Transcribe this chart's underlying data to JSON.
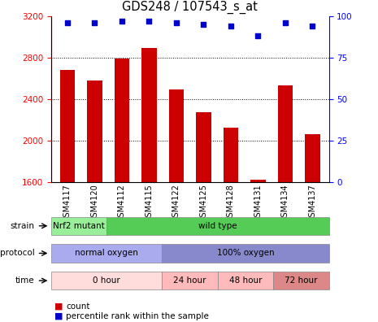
{
  "title": "GDS248 / 107543_s_at",
  "samples": [
    "GSM4117",
    "GSM4120",
    "GSM4112",
    "GSM4115",
    "GSM4122",
    "GSM4125",
    "GSM4128",
    "GSM4131",
    "GSM4134",
    "GSM4137"
  ],
  "counts": [
    2680,
    2580,
    2790,
    2890,
    2490,
    2270,
    2120,
    1620,
    2530,
    2060
  ],
  "percentiles": [
    96,
    96,
    97,
    97,
    96,
    95,
    94,
    88,
    96,
    94
  ],
  "bar_color": "#cc0000",
  "dot_color": "#0000cc",
  "ylim_left": [
    1600,
    3200
  ],
  "ylim_right": [
    0,
    100
  ],
  "yticks_left": [
    1600,
    2000,
    2400,
    2800,
    3200
  ],
  "yticks_right": [
    0,
    25,
    50,
    75,
    100
  ],
  "strain_labels": [
    {
      "text": "Nrf2 mutant",
      "start": 0,
      "end": 2,
      "color": "#99ee99"
    },
    {
      "text": "wild type",
      "start": 2,
      "end": 10,
      "color": "#55cc55"
    }
  ],
  "protocol_labels": [
    {
      "text": "normal oxygen",
      "start": 0,
      "end": 4,
      "color": "#aaaaee"
    },
    {
      "text": "100% oxygen",
      "start": 4,
      "end": 10,
      "color": "#8888cc"
    }
  ],
  "time_labels": [
    {
      "text": "0 hour",
      "start": 0,
      "end": 4,
      "color": "#ffdddd"
    },
    {
      "text": "24 hour",
      "start": 4,
      "end": 6,
      "color": "#ffbbbb"
    },
    {
      "text": "48 hour",
      "start": 6,
      "end": 8,
      "color": "#ffbbbb"
    },
    {
      "text": "72 hour",
      "start": 8,
      "end": 10,
      "color": "#dd8888"
    }
  ],
  "legend_count_color": "#cc0000",
  "legend_dot_color": "#0000cc"
}
